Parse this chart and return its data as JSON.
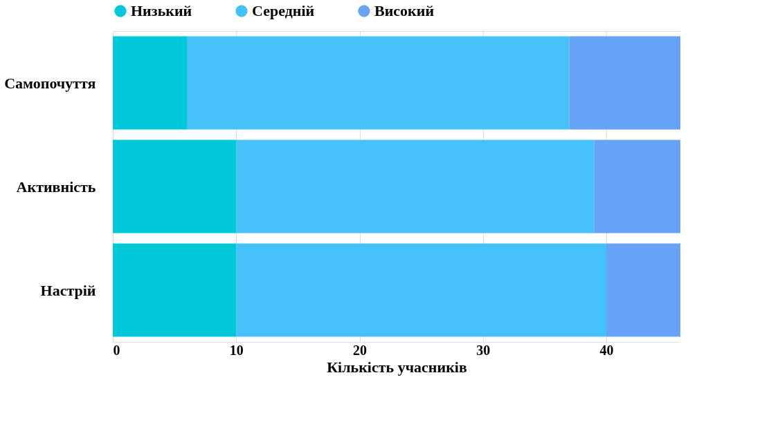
{
  "chart_data": {
    "type": "bar",
    "orientation": "horizontal",
    "stacked": true,
    "xlabel": "Кількість учасників",
    "categories": [
      "Самопочуття",
      "Активність",
      "Настрій"
    ],
    "series": [
      {
        "name": "Низький",
        "color": "#00c8d8",
        "values": [
          6,
          10,
          10
        ]
      },
      {
        "name": "Середній",
        "color": "#47c1fa",
        "values": [
          31,
          29,
          30
        ]
      },
      {
        "name": "Високий",
        "color": "#66a3f7",
        "values": [
          9,
          7,
          6
        ]
      }
    ],
    "xlim": [
      0,
      46
    ],
    "xticks": [
      0,
      10,
      20,
      30,
      40
    ],
    "grid": "x",
    "legend": "top"
  }
}
